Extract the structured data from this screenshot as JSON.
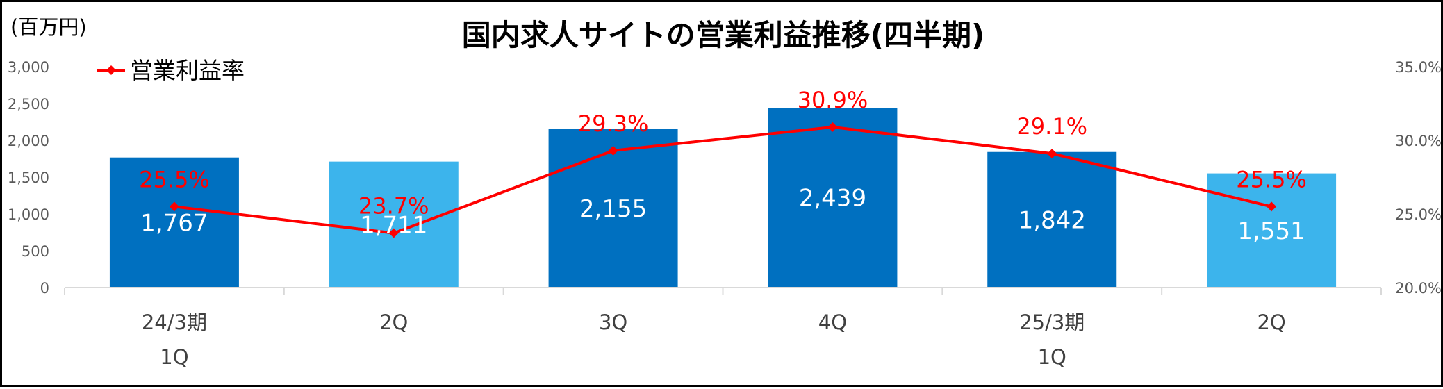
{
  "chart_data": {
    "type": "bar",
    "title": "国内求人サイトの営業利益推移(四半期)",
    "unit_label": "(百万円)",
    "categories": [
      [
        "24/3期",
        "1Q"
      ],
      [
        "2Q"
      ],
      [
        "3Q"
      ],
      [
        "4Q"
      ],
      [
        "25/3期",
        "1Q"
      ],
      [
        "2Q"
      ]
    ],
    "series": [
      {
        "kind": "bar",
        "axis": "left",
        "values": [
          1767,
          1711,
          2155,
          2439,
          1842,
          1551
        ],
        "labels": [
          "1,767",
          "1,711",
          "2,155",
          "2,439",
          "1,842",
          "1,551"
        ],
        "colors": [
          "#0070c0",
          "#3cb4ec",
          "#0070c0",
          "#0070c0",
          "#0070c0",
          "#3cb4ec"
        ]
      },
      {
        "kind": "line",
        "axis": "right",
        "name": "営業利益率",
        "values": [
          25.5,
          23.7,
          29.3,
          30.9,
          29.1,
          25.5
        ],
        "labels": [
          "25.5%",
          "23.7%",
          "29.3%",
          "30.9%",
          "29.1%",
          "25.5%"
        ],
        "color": "#ff0000"
      }
    ],
    "y_left": {
      "min": 0,
      "max": 3000,
      "ticks": [
        "0",
        "500",
        "1,000",
        "1,500",
        "2,000",
        "2,500",
        "3,000"
      ]
    },
    "y_right": {
      "min": 20,
      "max": 35,
      "ticks": [
        "20.0%",
        "25.0%",
        "30.0%",
        "35.0%"
      ]
    },
    "legend_position": "top-left",
    "grid": false
  }
}
